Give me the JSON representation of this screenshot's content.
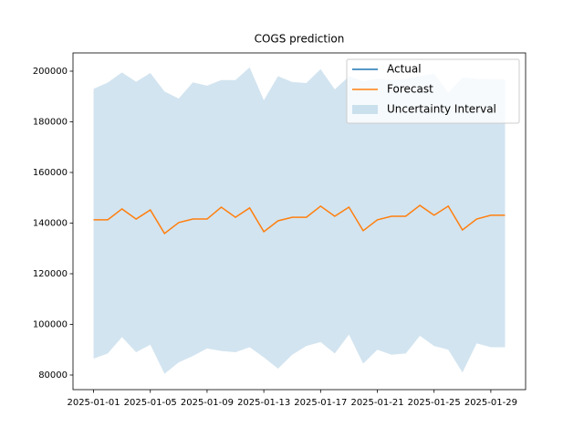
{
  "chart_data": {
    "type": "line",
    "title": "COGS prediction",
    "x": [
      "2025-01-01",
      "2025-01-02",
      "2025-01-03",
      "2025-01-04",
      "2025-01-05",
      "2025-01-06",
      "2025-01-07",
      "2025-01-08",
      "2025-01-09",
      "2025-01-10",
      "2025-01-11",
      "2025-01-12",
      "2025-01-13",
      "2025-01-14",
      "2025-01-15",
      "2025-01-16",
      "2025-01-17",
      "2025-01-18",
      "2025-01-19",
      "2025-01-20",
      "2025-01-21",
      "2025-01-22",
      "2025-01-23",
      "2025-01-24",
      "2025-01-25",
      "2025-01-26",
      "2025-01-27",
      "2025-01-28",
      "2025-01-29",
      "2025-01-30"
    ],
    "series": [
      {
        "name": "Actual",
        "color": "#1f77b4",
        "values": [
          null,
          null,
          null,
          null,
          null,
          null,
          null,
          null,
          null,
          null,
          null,
          null,
          null,
          null,
          null,
          null,
          null,
          null,
          null,
          null,
          null,
          null,
          null,
          null,
          null,
          null,
          null,
          null,
          null,
          null
        ]
      },
      {
        "name": "Forecast",
        "color": "#ff7f0e",
        "values": [
          141300,
          141300,
          145600,
          141600,
          145200,
          135900,
          140200,
          141600,
          141600,
          146300,
          142300,
          146000,
          136600,
          140900,
          142300,
          142300,
          146700,
          142700,
          146300,
          137000,
          141300,
          142700,
          142700,
          147000,
          143100,
          146700,
          137300,
          141600,
          143100,
          143100
        ]
      }
    ],
    "band": {
      "name": "Uncertainty Interval",
      "color": "#1f77b4",
      "upper": [
        193000,
        195500,
        199500,
        195800,
        199300,
        192000,
        189200,
        195600,
        194300,
        196500,
        196500,
        201500,
        188500,
        198000,
        195700,
        195300,
        200800,
        192800,
        198000,
        196000,
        197000,
        196500,
        197000,
        198000,
        199000,
        191500,
        197500,
        197000,
        196800,
        196800
      ],
      "lower": [
        86500,
        88500,
        95000,
        89000,
        92000,
        80500,
        85000,
        87500,
        90500,
        89500,
        89000,
        91000,
        87000,
        82500,
        88000,
        91500,
        93000,
        88500,
        96000,
        84500,
        90000,
        88000,
        88500,
        95500,
        91500,
        90000,
        81000,
        92500,
        91000,
        91000
      ]
    },
    "xlim": [
      "2024-12-30T13:12",
      "2025-01-31T10:48"
    ],
    "xticks": [
      "2025-01-01",
      "2025-01-05",
      "2025-01-09",
      "2025-01-13",
      "2025-01-17",
      "2025-01-21",
      "2025-01-25",
      "2025-01-29"
    ],
    "ylim": [
      74234,
      207207
    ],
    "yticks": [
      80000,
      100000,
      120000,
      140000,
      160000,
      180000,
      200000
    ],
    "legend": "upper right"
  }
}
